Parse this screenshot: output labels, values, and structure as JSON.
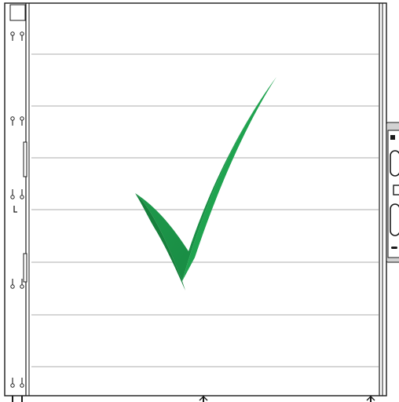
{
  "figure": {
    "description_icon": "check-mark-icon",
    "colors": {
      "line": "#2b2b2b",
      "panel_seam": "#c9c9c9",
      "frame": "#1a1a1a",
      "check_light": "#1c9d4b",
      "check_dark": "#15803d",
      "handle_panel": "#d2d2d2"
    },
    "door": {
      "panel_count": 7,
      "hinge_pair_count": 5
    },
    "side_handle": {
      "icon": "door-handle-icon"
    }
  }
}
